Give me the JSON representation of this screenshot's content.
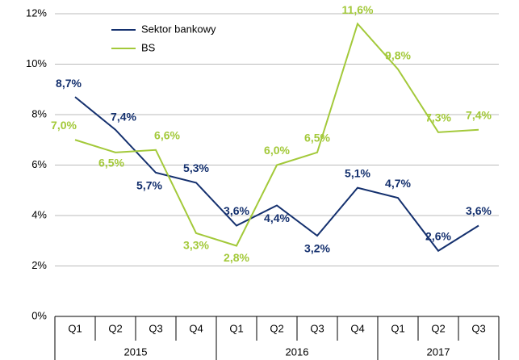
{
  "chart_data": {
    "type": "line",
    "categories": [
      "Q1",
      "Q2",
      "Q3",
      "Q4",
      "Q1",
      "Q2",
      "Q3",
      "Q4",
      "Q1",
      "Q2",
      "Q3"
    ],
    "groups": [
      {
        "name": "2015",
        "count": 4
      },
      {
        "name": "2016",
        "count": 4
      },
      {
        "name": "2017",
        "count": 3
      }
    ],
    "series": [
      {
        "name": "Sektor bankowy",
        "color": "#14306e",
        "values": [
          8.7,
          7.4,
          5.7,
          5.3,
          3.6,
          4.4,
          3.2,
          5.1,
          4.7,
          2.6,
          3.6
        ],
        "value_labels": [
          "8,7%",
          "7,4%",
          "5,7%",
          "5,3%",
          "3,6%",
          "4,4%",
          "3,2%",
          "5,1%",
          "4,7%",
          "2,6%",
          "3,6%"
        ]
      },
      {
        "name": "BS",
        "color": "#a3c93a",
        "values": [
          7.0,
          6.5,
          6.6,
          3.3,
          2.8,
          6.0,
          6.5,
          11.6,
          9.8,
          7.3,
          7.4
        ],
        "value_labels": [
          "7,0%",
          "6,5%",
          "6,6%",
          "3,3%",
          "2,8%",
          "6,0%",
          "6,5%",
          "11,6%",
          "9,8%",
          "7,3%",
          "7,4%"
        ]
      }
    ],
    "ylim": [
      0,
      12
    ],
    "yticks": [
      {
        "value": 0,
        "label": "0%"
      },
      {
        "value": 2,
        "label": "2%"
      },
      {
        "value": 4,
        "label": "4%"
      },
      {
        "value": 6,
        "label": "6%"
      },
      {
        "value": 8,
        "label": "8%"
      },
      {
        "value": 10,
        "label": "10%"
      },
      {
        "value": 12,
        "label": "12%"
      }
    ],
    "grid": true,
    "legend": "upper left"
  }
}
